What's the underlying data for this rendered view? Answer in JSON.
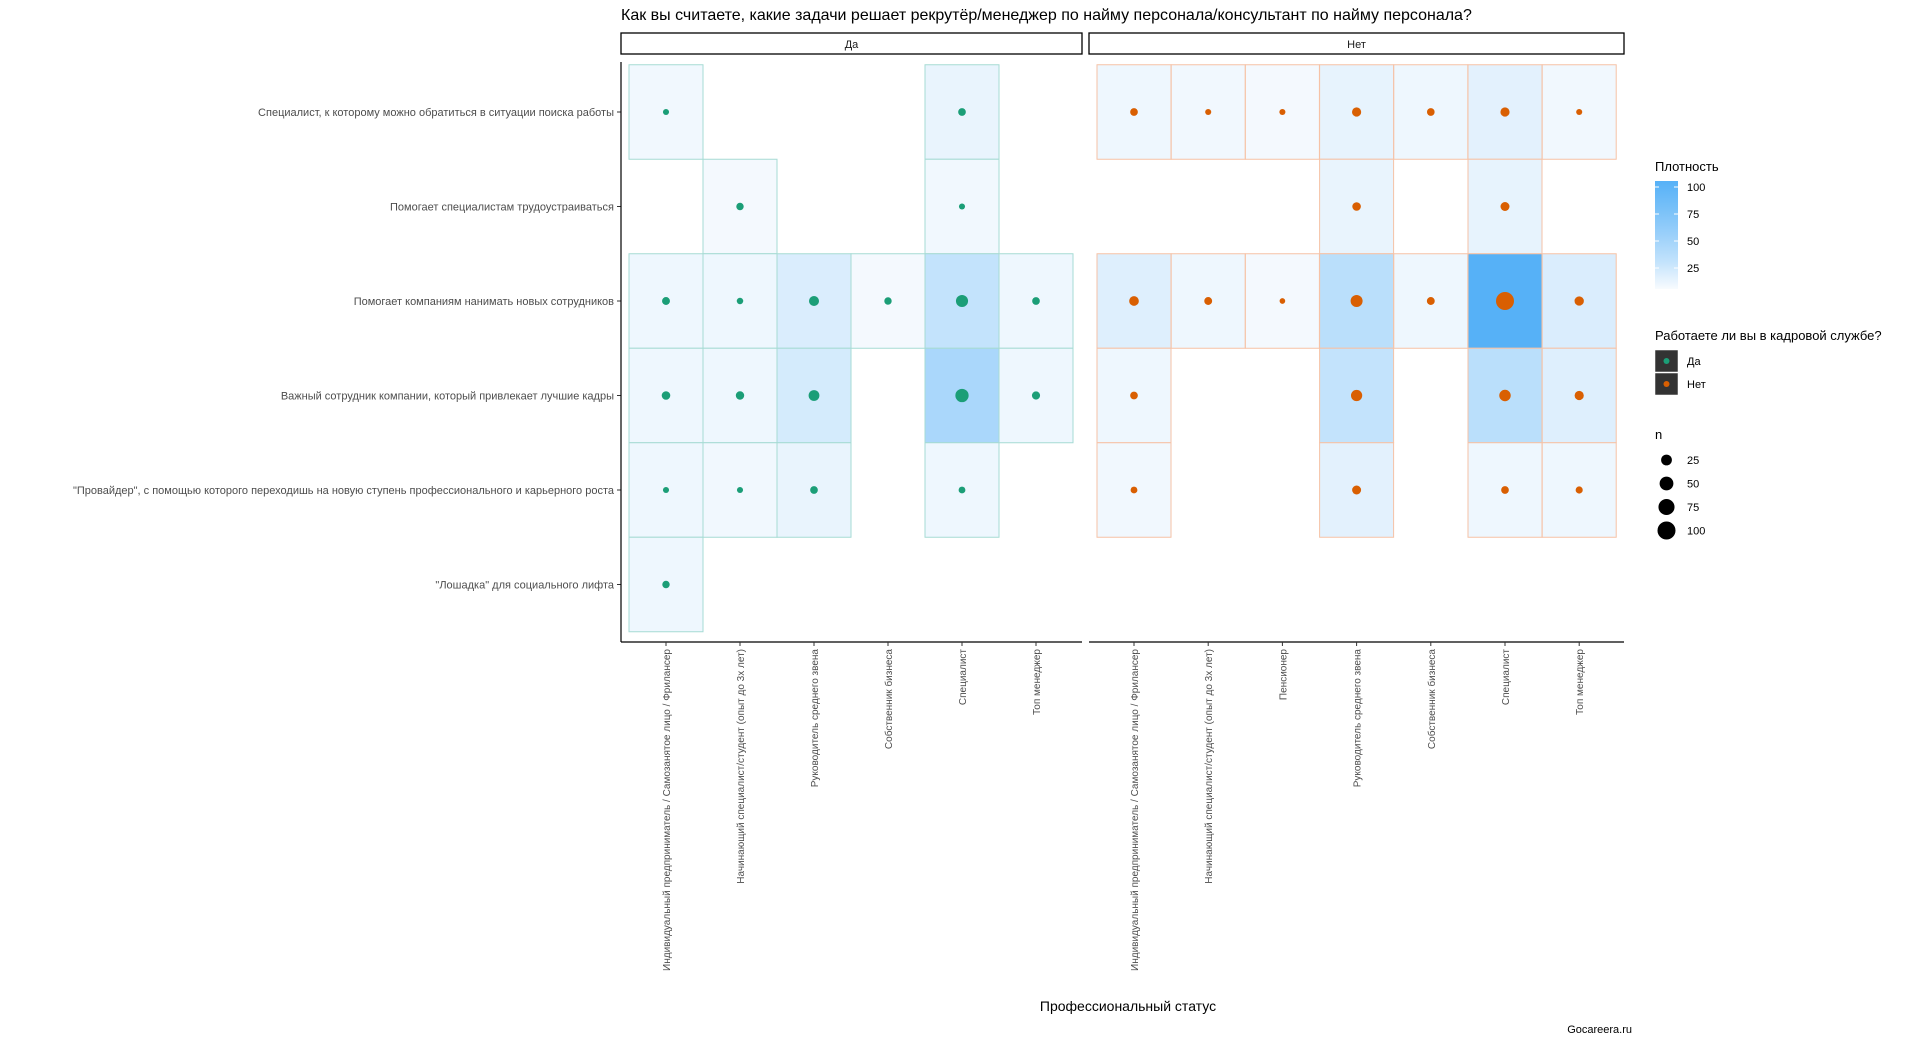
{
  "chart_data": {
    "type": "heatmap",
    "title": "Как вы считаете, какие задачи решает рекрутёр/менеджер по найму персонала/консультант по найму персонала?",
    "xlabel": "Профессиональный статус",
    "ylabel": "",
    "caption": "Gocareera.ru",
    "rows": [
      "Специалист, к которому можно обратиться в ситуации поиска работы",
      "Помогает специалистам трудоустраиваться",
      "Помогает компаниям нанимать новых сотрудников",
      "Важный сотрудник компании, который привлекает лучшие кадры",
      "\"Провайдер\", с помощью которого переходишь на новую ступень профессионального и карьерного роста",
      "\"Лошадка\" для социального лифта"
    ],
    "panels": [
      {
        "label": "Да",
        "group": "Да",
        "categories": [
          "Индивидуальный предприниматель / Самозанятое лицо / Фрилансер",
          "Начинающий специалист/студент (опыт до 3х лет)",
          "Руководитель среднего звена",
          "Собственник бизнеса",
          "Специалист",
          "Топ менеджер"
        ],
        "cells": [
          {
            "row": 0,
            "col": 0,
            "n": 3,
            "density": 2
          },
          {
            "row": 0,
            "col": 4,
            "n": 8,
            "density": 5
          },
          {
            "row": 1,
            "col": 1,
            "n": 7,
            "density": 1
          },
          {
            "row": 1,
            "col": 4,
            "n": 3,
            "density": 2
          },
          {
            "row": 2,
            "col": 0,
            "n": 9,
            "density": 3
          },
          {
            "row": 2,
            "col": 1,
            "n": 4,
            "density": 3
          },
          {
            "row": 2,
            "col": 2,
            "n": 20,
            "density": 12
          },
          {
            "row": 2,
            "col": 3,
            "n": 7,
            "density": 1
          },
          {
            "row": 2,
            "col": 4,
            "n": 35,
            "density": 25
          },
          {
            "row": 2,
            "col": 5,
            "n": 8,
            "density": 3
          },
          {
            "row": 3,
            "col": 0,
            "n": 12,
            "density": 3
          },
          {
            "row": 3,
            "col": 1,
            "n": 11,
            "density": 3
          },
          {
            "row": 3,
            "col": 2,
            "n": 25,
            "density": 15
          },
          {
            "row": 3,
            "col": 4,
            "n": 45,
            "density": 40
          },
          {
            "row": 3,
            "col": 5,
            "n": 10,
            "density": 3
          },
          {
            "row": 4,
            "col": 0,
            "n": 3,
            "density": 3
          },
          {
            "row": 4,
            "col": 1,
            "n": 3,
            "density": 2
          },
          {
            "row": 4,
            "col": 2,
            "n": 8,
            "density": 5
          },
          {
            "row": 4,
            "col": 4,
            "n": 5,
            "density": 3
          },
          {
            "row": 5,
            "col": 0,
            "n": 7,
            "density": 3
          }
        ]
      },
      {
        "label": "Нет",
        "group": "Нет",
        "categories": [
          "Индивидуальный предприниматель / Самозанятое лицо / Фрилансер",
          "Начинающий специалист/студент (опыт до 3х лет)",
          "Пенсионер",
          "Руководитель среднего звена",
          "Собственник бизнеса",
          "Специалист",
          "Топ менеджер"
        ],
        "cells": [
          {
            "row": 0,
            "col": 0,
            "n": 8,
            "density": 3
          },
          {
            "row": 0,
            "col": 1,
            "n": 3,
            "density": 2
          },
          {
            "row": 0,
            "col": 2,
            "n": 3,
            "density": 1
          },
          {
            "row": 0,
            "col": 3,
            "n": 15,
            "density": 6
          },
          {
            "row": 0,
            "col": 4,
            "n": 8,
            "density": 3
          },
          {
            "row": 0,
            "col": 5,
            "n": 15,
            "density": 8
          },
          {
            "row": 0,
            "col": 6,
            "n": 3,
            "density": 2
          },
          {
            "row": 1,
            "col": 3,
            "n": 12,
            "density": 5
          },
          {
            "row": 1,
            "col": 5,
            "n": 14,
            "density": 6
          },
          {
            "row": 2,
            "col": 0,
            "n": 18,
            "density": 10
          },
          {
            "row": 2,
            "col": 1,
            "n": 9,
            "density": 3
          },
          {
            "row": 2,
            "col": 2,
            "n": 2,
            "density": 1
          },
          {
            "row": 2,
            "col": 3,
            "n": 34,
            "density": 30
          },
          {
            "row": 2,
            "col": 4,
            "n": 9,
            "density": 3
          },
          {
            "row": 2,
            "col": 5,
            "n": 100,
            "density": 100
          },
          {
            "row": 2,
            "col": 6,
            "n": 16,
            "density": 12
          },
          {
            "row": 3,
            "col": 0,
            "n": 8,
            "density": 3
          },
          {
            "row": 3,
            "col": 3,
            "n": 28,
            "density": 25
          },
          {
            "row": 3,
            "col": 5,
            "n": 30,
            "density": 30
          },
          {
            "row": 3,
            "col": 6,
            "n": 15,
            "density": 10
          },
          {
            "row": 4,
            "col": 0,
            "n": 5,
            "density": 2
          },
          {
            "row": 4,
            "col": 3,
            "n": 14,
            "density": 8
          },
          {
            "row": 4,
            "col": 5,
            "n": 8,
            "density": 3
          },
          {
            "row": 4,
            "col": 6,
            "n": 6,
            "density": 3
          }
        ]
      }
    ],
    "legend_fill": {
      "title": "Плотность",
      "breaks": [
        25,
        50,
        75,
        100
      ],
      "range": [
        0,
        100
      ],
      "low_color": "#ffffff",
      "high_color": "#56b1f7"
    },
    "legend_color": {
      "title": "Работаете ли вы в кадровой службе?",
      "items": [
        {
          "label": "Да",
          "color": "#1b9e77"
        },
        {
          "label": "Нет",
          "color": "#d95f02"
        }
      ]
    },
    "legend_size": {
      "title": "n",
      "breaks": [
        25,
        50,
        75,
        100
      ]
    },
    "colors": {
      "Да_point": "#1b9e77",
      "Да_border": "#a6dbd4",
      "Нет_point": "#d95f02",
      "Нет_border": "#f6c2a6"
    }
  }
}
